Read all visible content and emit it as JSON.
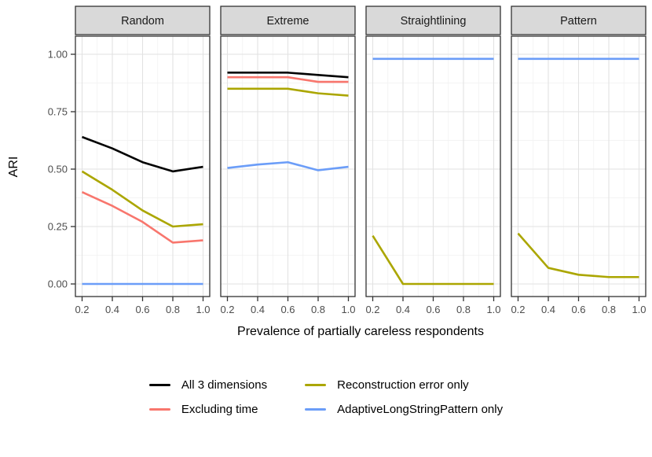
{
  "chart_data": {
    "type": "line",
    "title": "",
    "xlabel": "Prevalence of partially careless respondents",
    "ylabel": "ARI",
    "legend_position": "bottom",
    "grid": true,
    "facets": [
      "Random",
      "Extreme",
      "Straightlining",
      "Pattern"
    ],
    "x": [
      0.2,
      0.4,
      0.6,
      0.8,
      1.0
    ],
    "x_tick_labels": [
      "0.2",
      "0.4",
      "0.6",
      "0.8",
      "1.0"
    ],
    "y_ticks": [
      1.0,
      0.75,
      0.5,
      0.25,
      0.0
    ],
    "y_tick_labels": [
      "1.00",
      "0.75",
      "0.50",
      "0.25",
      "0.00"
    ],
    "y_minor_ticks": [
      0.875,
      0.625,
      0.375,
      0.125
    ],
    "ylim": [
      0,
      1
    ],
    "series": [
      {
        "name": "All 3 dimensions",
        "color": "#000000",
        "values": {
          "Random": [
            0.64,
            0.59,
            0.53,
            0.49,
            0.51
          ],
          "Extreme": [
            0.92,
            0.92,
            0.92,
            0.91,
            0.9
          ],
          "Straightlining": null,
          "Pattern": null
        }
      },
      {
        "name": "Excluding time",
        "color": "#F8766D",
        "values": {
          "Random": [
            0.4,
            0.34,
            0.27,
            0.18,
            0.19
          ],
          "Extreme": [
            0.9,
            0.9,
            0.9,
            0.88,
            0.88
          ],
          "Straightlining": null,
          "Pattern": null
        }
      },
      {
        "name": "Reconstruction error only",
        "color": "#ABA600",
        "values": {
          "Random": [
            0.49,
            0.41,
            0.32,
            0.25,
            0.26
          ],
          "Extreme": [
            0.85,
            0.85,
            0.85,
            0.83,
            0.82
          ],
          "Straightlining": [
            0.21,
            0.0,
            0.0,
            0.0,
            0.0
          ],
          "Pattern": [
            0.22,
            0.07,
            0.04,
            0.03,
            0.03
          ]
        }
      },
      {
        "name": "AdaptiveLongStringPattern only",
        "color": "#6B9DF8",
        "values": {
          "Random": [
            0.0,
            0.0,
            0.0,
            0.0,
            0.0
          ],
          "Extreme": [
            0.505,
            0.52,
            0.53,
            0.495,
            0.51
          ],
          "Straightlining": [
            0.98,
            0.98,
            0.98,
            0.98,
            0.98
          ],
          "Pattern": [
            0.98,
            0.98,
            0.98,
            0.98,
            0.98
          ]
        }
      }
    ],
    "theme": {
      "strip_background": "#D9D9D9",
      "strip_border": "#333333",
      "panel_background": "#FFFFFF",
      "panel_border": "#333333",
      "grid_major_color": "#E2E2E2",
      "grid_minor_color": "#F0F0F0",
      "tick_color": "#333333",
      "tick_label_color": "#4D4D4D"
    }
  }
}
